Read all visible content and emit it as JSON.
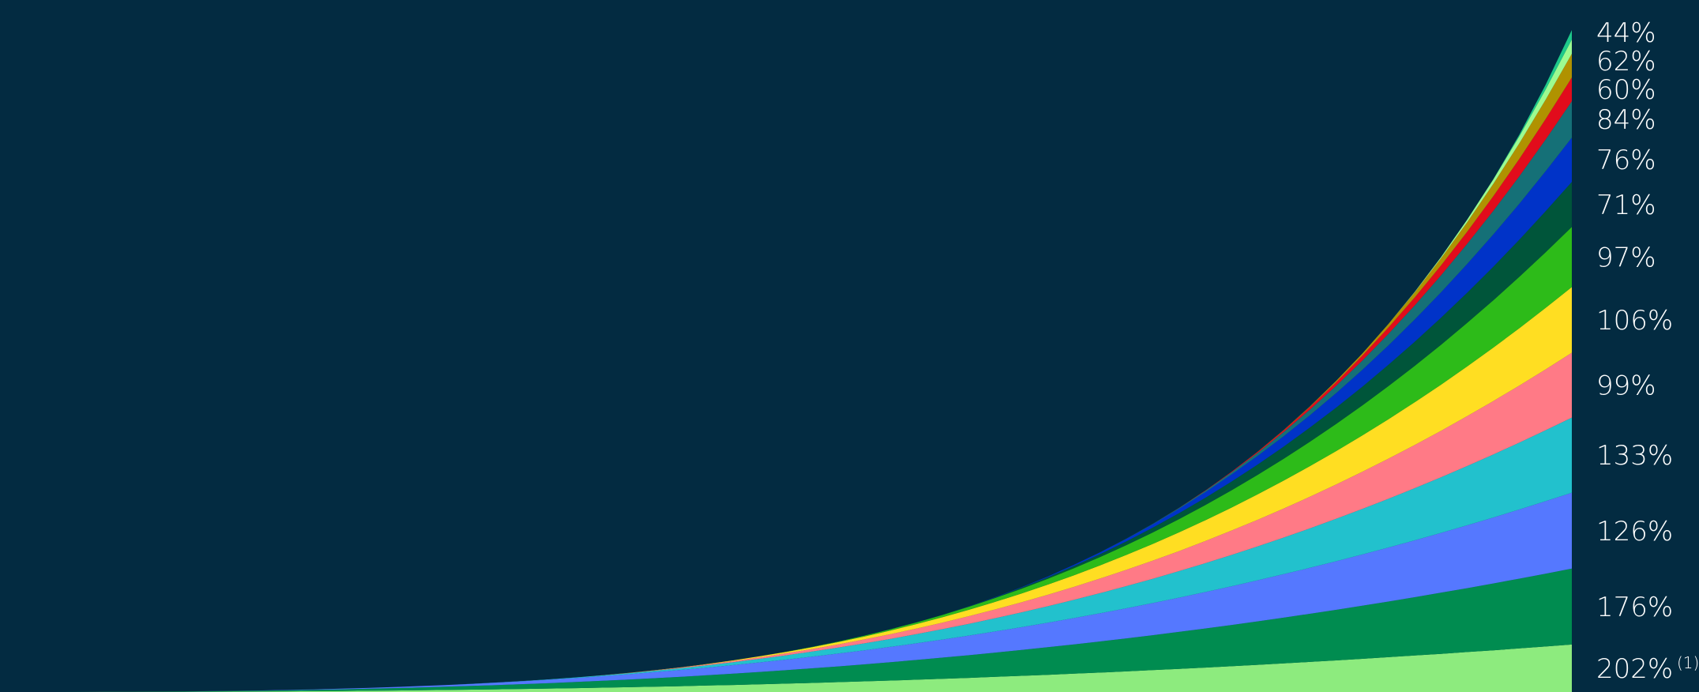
{
  "chart_data": {
    "type": "area",
    "stacked": true,
    "title": "",
    "xlabel": "",
    "ylabel": "",
    "grid": false,
    "background": "#032b41",
    "label_color": "#ffffff",
    "x_count": 61,
    "series": [
      {
        "label": "202%",
        "footnote": "(1)",
        "color": "#8deb7e",
        "start_index": 0,
        "end_value": 60
      },
      {
        "label": "176%",
        "color": "#008c50",
        "start_index": 0,
        "end_value": 96
      },
      {
        "label": "126%",
        "color": "#5578ff",
        "start_index": 5,
        "end_value": 96
      },
      {
        "label": "133%",
        "color": "#22c1cd",
        "start_index": 16,
        "end_value": 95
      },
      {
        "label": "99%",
        "color": "#ff7a86",
        "start_index": 20,
        "end_value": 82
      },
      {
        "label": "106%",
        "color": "#ffde22",
        "start_index": 22,
        "end_value": 83
      },
      {
        "label": "97%",
        "color": "#2dbb19",
        "start_index": 27,
        "end_value": 76
      },
      {
        "label": "71%",
        "color": "#00553a",
        "start_index": 33,
        "end_value": 57
      },
      {
        "label": "76%",
        "color": "#0033c8",
        "start_index": 35,
        "end_value": 56
      },
      {
        "label": "84%",
        "color": "#157077",
        "start_index": 41,
        "end_value": 46
      },
      {
        "label": "60%",
        "color": "#e20c1c",
        "start_index": 43,
        "end_value": 30
      },
      {
        "label": "62%",
        "color": "#b09200",
        "start_index": 47,
        "end_value": 30
      },
      {
        "label": "44%",
        "color": "#9dfb90",
        "start_index": 52,
        "end_value": 18
      },
      {
        "label": "",
        "color": "#1ec98a",
        "start_index": 56,
        "end_value": 12
      }
    ]
  }
}
